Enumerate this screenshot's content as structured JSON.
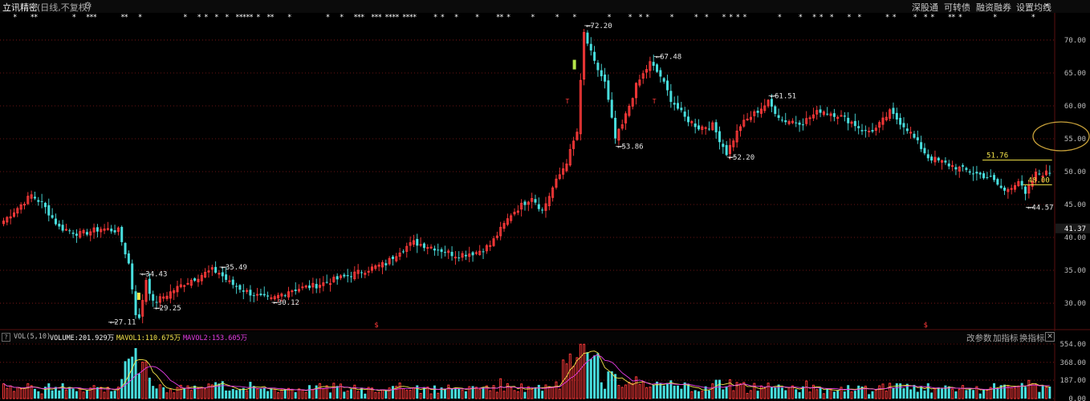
{
  "header": {
    "stock_name": "立讯精密",
    "period_tag": "(日线,不复权)",
    "gear_icon": "gear-icon",
    "links": [
      "深股通",
      "可转债",
      "融资融券",
      "设置均线"
    ]
  },
  "indicator_bar": {
    "help": "?",
    "name": "VOL(5,10)",
    "volume": "VOLUME:201.929万",
    "mavol1": "MAVOL1:110.675万",
    "mavol2": "MAVOL2:153.605万",
    "buttons": [
      "改参数",
      "加指标",
      "换指标"
    ],
    "close": "✕"
  },
  "colors": {
    "up": "#ff3a3a",
    "down": "#48dede",
    "mavol1": "#f4e44a",
    "mavol2": "#e53de5",
    "grid": "#8a1a1a"
  },
  "chart_data": [
    {
      "type": "candlestick",
      "ylim": [
        26.0,
        73.5
      ],
      "y_ticks": [
        30,
        35,
        40,
        45,
        50,
        55,
        60,
        65,
        70
      ],
      "y_tick_labels": [
        "30.00",
        "35.00",
        "40.00",
        "45.00",
        "50.00",
        "55.00",
        "60.00",
        "65.00",
        "70.00"
      ],
      "current_price": 41.37,
      "current_price_label": "41.37",
      "grid": true,
      "annotations": [
        {
          "label": "27.11",
          "x": 30,
          "price": 27.11
        },
        {
          "label": "34.43",
          "x": 39,
          "price": 34.43
        },
        {
          "label": "29.25",
          "x": 43,
          "price": 29.25
        },
        {
          "label": "35.49",
          "x": 62,
          "price": 35.49
        },
        {
          "label": "30.12",
          "x": 77,
          "price": 30.12
        },
        {
          "label": "72.20",
          "x": 167,
          "price": 72.2
        },
        {
          "label": "53.86",
          "x": 176,
          "price": 53.86
        },
        {
          "label": "67.48",
          "x": 187,
          "price": 67.48
        },
        {
          "label": "52.20",
          "x": 208,
          "price": 52.2
        },
        {
          "label": "61.51",
          "x": 220,
          "price": 61.51
        },
        {
          "label": "44.57",
          "x": 294,
          "price": 44.57
        }
      ],
      "band": {
        "upper_label": "51.76",
        "upper": 51.76,
        "lower_label": "48.00",
        "lower": 48.0
      },
      "event_markers": [
        "T",
        "T"
      ],
      "dividend_markers": [
        "$",
        "$"
      ]
    },
    {
      "type": "bar",
      "title": "VOL(5,10)",
      "y_ticks": [
        0,
        187,
        368,
        554
      ],
      "y_tick_labels": [
        "0.00",
        "187.00",
        "368.00",
        "554.00"
      ],
      "ylim": [
        0,
        554
      ],
      "series": [
        {
          "name": "VOLUME"
        },
        {
          "name": "MAVOL1"
        },
        {
          "name": "MAVOL2"
        }
      ]
    }
  ]
}
